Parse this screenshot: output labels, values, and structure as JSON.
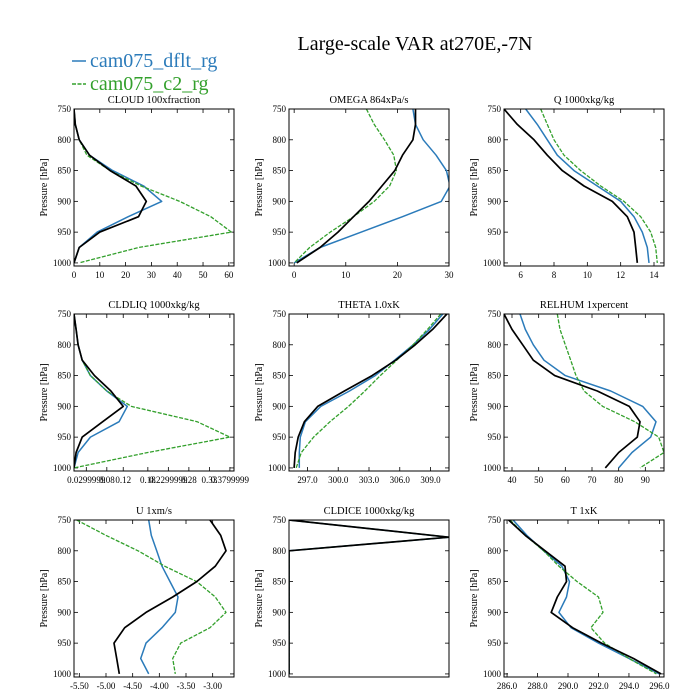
{
  "title": "Large-scale VAR at270E,-7N",
  "legend": [
    {
      "name": "cam075_dflt_rg",
      "color": "#2b7bba"
    },
    {
      "name": "cam075_c2_rg",
      "color": "#33a02c"
    }
  ],
  "obs_color": "#000000",
  "y_axis_label": "Pressure [hPa]",
  "y_ticks": [
    "750",
    "800",
    "850",
    "900",
    "950",
    "1000"
  ],
  "chart_data": [
    {
      "type": "line",
      "title": "CLOUD 100xfraction",
      "xlim": [
        0,
        62
      ],
      "ylim": [
        750,
        1005
      ],
      "xticks": [
        0,
        10,
        20,
        30,
        40,
        50,
        60
      ],
      "xtick_labels": [
        "0",
        "10",
        "20",
        "30",
        "40",
        "50",
        "60"
      ],
      "y": [
        750,
        775,
        800,
        825,
        850,
        875,
        900,
        925,
        950,
        975,
        1000
      ],
      "series": [
        {
          "ref": "dflt",
          "values": [
            0,
            0.5,
            2,
            6,
            15,
            27,
            34,
            21,
            9,
            2,
            0
          ]
        },
        {
          "ref": "c2",
          "values": [
            0,
            0.5,
            2,
            5,
            14,
            26,
            41,
            53,
            61,
            25,
            2
          ]
        },
        {
          "ref": "obs",
          "values": [
            0,
            0.5,
            2,
            6,
            14,
            24,
            28,
            25,
            10,
            2,
            0
          ]
        }
      ]
    },
    {
      "type": "line",
      "title": "OMEGA  864xPa/s",
      "xlim": [
        -1,
        30
      ],
      "ylim": [
        750,
        1005
      ],
      "xticks": [
        0,
        10,
        20,
        30
      ],
      "xtick_labels": [
        "0",
        "10",
        "20",
        "30"
      ],
      "y": [
        750,
        775,
        800,
        825,
        850,
        875,
        900,
        925,
        950,
        975,
        1000
      ],
      "series": [
        {
          "ref": "dflt",
          "values": [
            23,
            23.5,
            25,
            27.5,
            29.5,
            30.2,
            28.5,
            21,
            13,
            5,
            0
          ]
        },
        {
          "ref": "c2",
          "values": [
            14,
            15.5,
            17.5,
            19.3,
            19.8,
            18.5,
            15.5,
            11.5,
            7,
            3,
            0
          ]
        },
        {
          "ref": "obs",
          "values": [
            23.5,
            23.5,
            23,
            21,
            19.5,
            17,
            14.5,
            11.5,
            8.5,
            5,
            0.5
          ]
        }
      ]
    },
    {
      "type": "line",
      "title": "Q  1000xkg/kg",
      "xlim": [
        5,
        14.6
      ],
      "ylim": [
        750,
        1005
      ],
      "xticks": [
        6,
        8,
        10,
        12,
        14
      ],
      "xtick_labels": [
        "6",
        "8",
        "10",
        "12",
        "14"
      ],
      "y": [
        750,
        775,
        800,
        825,
        850,
        875,
        900,
        925,
        950,
        975,
        1000
      ],
      "series": [
        {
          "ref": "dflt",
          "values": [
            6.3,
            7.0,
            7.6,
            8.2,
            9.2,
            10.6,
            12.0,
            12.8,
            13.3,
            13.6,
            13.7
          ]
        },
        {
          "ref": "c2",
          "values": [
            7.2,
            7.6,
            8.0,
            8.6,
            9.6,
            10.8,
            12.2,
            13.2,
            13.8,
            14.1,
            14.2
          ]
        },
        {
          "ref": "obs",
          "values": [
            5.0,
            5.8,
            6.8,
            7.6,
            8.5,
            9.8,
            11.5,
            12.4,
            12.8,
            12.9,
            13.0
          ]
        }
      ]
    },
    {
      "type": "line",
      "title": "CLDLIQ  1000xkg/kg",
      "xlim": [
        0,
        0.39
      ],
      "ylim": [
        750,
        1005
      ],
      "xticks": [
        0.03,
        0.08,
        0.12,
        0.18,
        0.23,
        0.28,
        0.33,
        0.38
      ],
      "xtick_labels": [
        "0.0299999",
        "0.08",
        "0.12",
        "0.18",
        "0.2299999",
        "0.28",
        "0.33",
        "0.3799999"
      ],
      "y": [
        750,
        775,
        800,
        825,
        850,
        875,
        900,
        925,
        950,
        975,
        1000
      ],
      "series": [
        {
          "ref": "dflt",
          "values": [
            0,
            0.005,
            0.01,
            0.02,
            0.04,
            0.08,
            0.13,
            0.11,
            0.04,
            0.01,
            0
          ]
        },
        {
          "ref": "c2",
          "values": [
            0,
            0.005,
            0.01,
            0.02,
            0.04,
            0.08,
            0.14,
            0.3,
            0.38,
            0.18,
            0
          ]
        },
        {
          "ref": "obs",
          "values": [
            0,
            0.005,
            0.01,
            0.02,
            0.05,
            0.09,
            0.12,
            0.07,
            0.02,
            0.005,
            0
          ]
        }
      ]
    },
    {
      "type": "line",
      "title": "THETA  1.0xK",
      "xlim": [
        295.2,
        310.8
      ],
      "ylim": [
        750,
        1005
      ],
      "xticks": [
        297.0,
        300.0,
        303.0,
        306.0,
        309.0
      ],
      "xtick_labels": [
        "297.0",
        "300.0",
        "303.0",
        "306.0",
        "309.0"
      ],
      "y": [
        750,
        775,
        800,
        825,
        850,
        875,
        900,
        925,
        950,
        975,
        1000
      ],
      "series": [
        {
          "ref": "dflt",
          "values": [
            310.2,
            308.9,
            307.3,
            305.5,
            303.6,
            301.1,
            298.3,
            296.8,
            296.3,
            296.2,
            296.2
          ]
        },
        {
          "ref": "c2",
          "values": [
            310.0,
            308.7,
            307.3,
            305.7,
            304.1,
            302.6,
            301.0,
            299.2,
            297.6,
            296.4,
            295.9
          ]
        },
        {
          "ref": "obs",
          "values": [
            310.6,
            309.2,
            307.5,
            305.6,
            303.3,
            300.6,
            298.0,
            296.7,
            296.1,
            295.8,
            295.7
          ]
        }
      ]
    },
    {
      "type": "line",
      "title": "RELHUM  1xpercent",
      "xlim": [
        37,
        97
      ],
      "ylim": [
        750,
        1005
      ],
      "xticks": [
        40,
        50,
        60,
        70,
        80,
        90
      ],
      "xtick_labels": [
        "40",
        "50",
        "60",
        "70",
        "80",
        "90"
      ],
      "y": [
        750,
        775,
        800,
        825,
        850,
        875,
        900,
        925,
        950,
        975,
        1000
      ],
      "series": [
        {
          "ref": "dflt",
          "values": [
            43,
            45,
            48,
            52,
            60,
            77,
            89,
            94,
            92,
            85,
            80
          ]
        },
        {
          "ref": "c2",
          "values": [
            57,
            58,
            60,
            62,
            64,
            67,
            74,
            86,
            95,
            97,
            88
          ]
        },
        {
          "ref": "obs",
          "values": [
            37,
            40,
            44,
            48,
            56,
            72,
            84,
            88,
            87,
            80,
            75
          ]
        }
      ]
    },
    {
      "type": "line",
      "title": "U  1xm/s",
      "xlim": [
        -5.6,
        -2.6
      ],
      "ylim": [
        750,
        1005
      ],
      "xticks": [
        -5.5,
        -5.0,
        -4.5,
        -4.0,
        -3.5,
        -3.0
      ],
      "xtick_labels": [
        "-5.50",
        "-5.00",
        "-4.50",
        "-4.00",
        "-3.50",
        "-3.00"
      ],
      "y": [
        750,
        775,
        800,
        825,
        850,
        875,
        900,
        925,
        950,
        975,
        1000
      ],
      "series": [
        {
          "ref": "dflt",
          "values": [
            -4.2,
            -4.15,
            -4.05,
            -3.95,
            -3.8,
            -3.65,
            -3.7,
            -3.95,
            -4.25,
            -4.35,
            -4.2
          ]
        },
        {
          "ref": "c2",
          "values": [
            -5.55,
            -5.0,
            -4.4,
            -3.9,
            -3.3,
            -2.95,
            -2.75,
            -3.05,
            -3.6,
            -3.75,
            -3.7
          ]
        },
        {
          "ref": "obs",
          "values": [
            -3.05,
            -2.85,
            -2.75,
            -2.95,
            -3.3,
            -3.75,
            -4.25,
            -4.65,
            -4.85,
            -4.8,
            -4.75
          ]
        }
      ]
    },
    {
      "type": "line",
      "title": "CLDICE  1000xkg/kg",
      "xlim": [
        0,
        1
      ],
      "ylim": [
        750,
        1005
      ],
      "xticks": [],
      "xtick_labels": [],
      "y": [
        750,
        778,
        800,
        1000
      ],
      "series": [
        {
          "ref": "dflt",
          "values": [
            0,
            1,
            0,
            0
          ]
        },
        {
          "ref": "c2",
          "values": [
            0,
            1,
            0,
            0
          ]
        },
        {
          "ref": "obs",
          "values": [
            0,
            1,
            0,
            0
          ]
        }
      ]
    },
    {
      "type": "line",
      "title": "T  1xK",
      "xlim": [
        285.8,
        296.3
      ],
      "ylim": [
        750,
        1005
      ],
      "xticks": [
        286.0,
        288.0,
        290.0,
        292.0,
        294.0,
        296.0
      ],
      "xtick_labels": [
        "286.0",
        "288.0",
        "290.0",
        "292.0",
        "294.0",
        "296.0"
      ],
      "y": [
        750,
        775,
        800,
        825,
        850,
        875,
        900,
        925,
        950,
        975,
        1000
      ],
      "series": [
        {
          "ref": "dflt",
          "values": [
            286.4,
            287.3,
            288.4,
            289.6,
            290.1,
            289.9,
            289.4,
            290.2,
            292.0,
            294.0,
            296.0
          ]
        },
        {
          "ref": "c2",
          "values": [
            286.2,
            287.2,
            288.4,
            289.4,
            290.6,
            292.0,
            292.3,
            291.5,
            292.4,
            294.0,
            295.8
          ]
        },
        {
          "ref": "obs",
          "values": [
            286.1,
            287.2,
            288.5,
            289.8,
            289.9,
            289.3,
            288.9,
            290.3,
            292.2,
            294.3,
            296.1
          ]
        }
      ]
    }
  ]
}
